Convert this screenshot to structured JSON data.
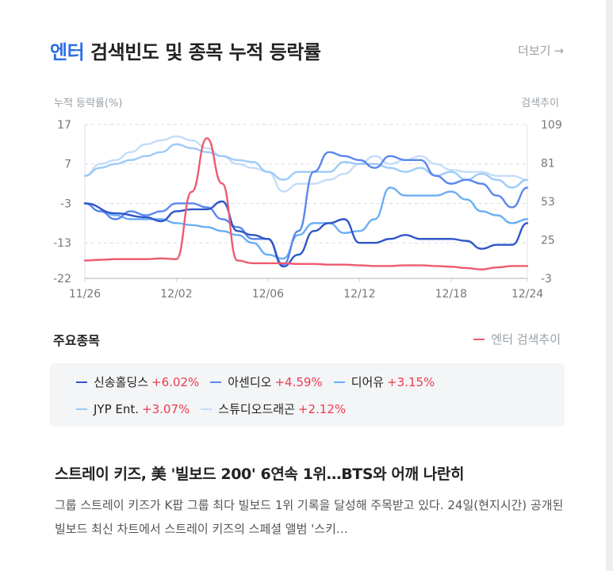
{
  "header": {
    "title_accent": "엔터",
    "title_rest": "검색빈도 및 종목 누적 등락률",
    "more_label": "더보기",
    "more_arrow": "→"
  },
  "chart_data": {
    "type": "line",
    "left_axis_label": "누적 등락률(%)",
    "right_axis_label": "검색추이",
    "y_left_ticks": [
      17,
      7,
      -3,
      -13,
      -22
    ],
    "y_left_range": [
      -22,
      17
    ],
    "y_right_ticks": [
      109,
      81,
      53,
      25,
      -3
    ],
    "y_right_range": [
      -3,
      109
    ],
    "x_ticks": [
      "11/26",
      "12/02",
      "12/06",
      "12/12",
      "12/18",
      "12/24"
    ],
    "x_range": [
      0,
      29
    ],
    "x_tick_positions": [
      0,
      6,
      12,
      18,
      24,
      29
    ],
    "grid": true,
    "series": [
      {
        "name": "신송홀딩스",
        "color": "#2f55c8",
        "axis": "left",
        "points": [
          [
            0,
            -3
          ],
          [
            2,
            -5.5
          ],
          [
            4,
            -6.5
          ],
          [
            5,
            -7.5
          ],
          [
            6,
            -5
          ],
          [
            7,
            -4.5
          ],
          [
            8,
            -4.5
          ],
          [
            9,
            -2.5
          ],
          [
            10,
            -10
          ],
          [
            11,
            -11
          ],
          [
            12,
            -12
          ],
          [
            13,
            -19
          ],
          [
            14,
            -16
          ],
          [
            15,
            -10
          ],
          [
            16,
            -8
          ],
          [
            17,
            -7
          ],
          [
            18,
            -13
          ],
          [
            19,
            -13
          ],
          [
            20,
            -12
          ],
          [
            21,
            -11
          ],
          [
            22,
            -12
          ],
          [
            23,
            -12
          ],
          [
            24,
            -12
          ],
          [
            25,
            -12.5
          ],
          [
            26,
            -14.5
          ],
          [
            27,
            -13.5
          ],
          [
            28,
            -13.5
          ],
          [
            29,
            -8
          ]
        ]
      },
      {
        "name": "아센디오",
        "color": "#5b86ee",
        "axis": "left",
        "points": [
          [
            0,
            -3
          ],
          [
            1,
            -5
          ],
          [
            2,
            -7
          ],
          [
            3,
            -5
          ],
          [
            4,
            -6
          ],
          [
            5,
            -5
          ],
          [
            6,
            -3
          ],
          [
            7,
            -3
          ],
          [
            8,
            -4
          ],
          [
            9,
            -7
          ],
          [
            10,
            -9
          ],
          [
            11,
            -12
          ],
          [
            12,
            -12
          ],
          [
            13,
            -18.5
          ],
          [
            14,
            -10
          ],
          [
            15,
            5
          ],
          [
            16,
            10
          ],
          [
            17,
            9
          ],
          [
            18,
            8
          ],
          [
            19,
            6
          ],
          [
            20,
            9
          ],
          [
            21,
            8
          ],
          [
            22,
            8
          ],
          [
            23,
            4
          ],
          [
            24,
            2
          ],
          [
            25,
            3
          ],
          [
            26,
            2
          ],
          [
            27,
            -1
          ],
          [
            28,
            -4
          ],
          [
            29,
            1
          ]
        ]
      },
      {
        "name": "디어유",
        "color": "#6aaef5",
        "axis": "left",
        "points": [
          [
            0,
            -3
          ],
          [
            1,
            -5
          ],
          [
            2,
            -6
          ],
          [
            3,
            -7
          ],
          [
            4,
            -7
          ],
          [
            5,
            -7
          ],
          [
            6,
            -8
          ],
          [
            7,
            -8.5
          ],
          [
            8,
            -9
          ],
          [
            9,
            -10
          ],
          [
            10,
            -11
          ],
          [
            11,
            -13
          ],
          [
            12,
            -16
          ],
          [
            13,
            -17
          ],
          [
            14,
            -11
          ],
          [
            15,
            -8
          ],
          [
            16,
            -8
          ],
          [
            17,
            -10.5
          ],
          [
            18,
            -10
          ],
          [
            19,
            -7
          ],
          [
            20,
            1
          ],
          [
            21,
            -1
          ],
          [
            22,
            -1
          ],
          [
            23,
            -1
          ],
          [
            24,
            0
          ],
          [
            25,
            -2
          ],
          [
            26,
            -5
          ],
          [
            27,
            -6
          ],
          [
            28,
            -8
          ],
          [
            29,
            -7
          ]
        ]
      },
      {
        "name": "JYP Ent.",
        "color": "#9ccaf7",
        "axis": "left",
        "points": [
          [
            0,
            4
          ],
          [
            1,
            6
          ],
          [
            2,
            7
          ],
          [
            3,
            8
          ],
          [
            4,
            9
          ],
          [
            5,
            10
          ],
          [
            6,
            12
          ],
          [
            7,
            11
          ],
          [
            8,
            10
          ],
          [
            9,
            9
          ],
          [
            10,
            8
          ],
          [
            11,
            7.5
          ],
          [
            12,
            5
          ],
          [
            13,
            3
          ],
          [
            14,
            5
          ],
          [
            15,
            5
          ],
          [
            16,
            5
          ],
          [
            17,
            7.5
          ],
          [
            18,
            7
          ],
          [
            19,
            7
          ],
          [
            20,
            6
          ],
          [
            21,
            5
          ],
          [
            22,
            6
          ],
          [
            23,
            4
          ],
          [
            24,
            5
          ],
          [
            25,
            3
          ],
          [
            26,
            4.5
          ],
          [
            27,
            3
          ],
          [
            28,
            1
          ],
          [
            29,
            3
          ]
        ]
      },
      {
        "name": "스튜디오드래곤",
        "color": "#c5dcf8",
        "axis": "left",
        "points": [
          [
            0,
            4
          ],
          [
            1,
            7
          ],
          [
            2,
            8
          ],
          [
            3,
            10
          ],
          [
            4,
            12
          ],
          [
            5,
            13
          ],
          [
            6,
            14
          ],
          [
            7,
            13
          ],
          [
            8,
            11
          ],
          [
            9,
            9
          ],
          [
            10,
            7
          ],
          [
            11,
            6
          ],
          [
            12,
            5
          ],
          [
            13,
            0
          ],
          [
            14,
            2
          ],
          [
            15,
            2
          ],
          [
            16,
            3
          ],
          [
            17,
            4.5
          ],
          [
            18,
            7
          ],
          [
            19,
            9
          ],
          [
            20,
            7
          ],
          [
            21,
            8
          ],
          [
            22,
            9
          ],
          [
            23,
            7
          ],
          [
            24,
            5.5
          ],
          [
            25,
            5
          ],
          [
            26,
            5
          ],
          [
            27,
            4
          ],
          [
            28,
            4
          ],
          [
            29,
            3
          ]
        ]
      },
      {
        "name": "엔터 검색추이",
        "color": "#ee5a6f",
        "axis": "right",
        "points": [
          [
            0,
            10
          ],
          [
            1,
            10.5
          ],
          [
            2,
            11
          ],
          [
            3,
            11
          ],
          [
            4,
            11
          ],
          [
            5,
            11.5
          ],
          [
            6,
            11
          ],
          [
            7,
            60
          ],
          [
            8,
            99
          ],
          [
            9,
            66
          ],
          [
            10,
            10
          ],
          [
            11,
            8
          ],
          [
            12,
            8
          ],
          [
            13,
            8
          ],
          [
            14,
            7.5
          ],
          [
            15,
            7.5
          ],
          [
            16,
            7
          ],
          [
            17,
            7
          ],
          [
            18,
            6.5
          ],
          [
            19,
            6
          ],
          [
            20,
            6
          ],
          [
            21,
            6.5
          ],
          [
            22,
            6.5
          ],
          [
            23,
            6
          ],
          [
            24,
            5.5
          ],
          [
            25,
            4.5
          ],
          [
            26,
            3.5
          ],
          [
            27,
            5
          ],
          [
            28,
            6
          ],
          [
            29,
            6
          ]
        ]
      }
    ]
  },
  "legend": {
    "section_label": "주요종목",
    "search_trend": "엔터 검색추이"
  },
  "stocks": [
    {
      "name": "신송홀딩스",
      "change": "+6.02%",
      "color": "#2f55c8"
    },
    {
      "name": "아센디오",
      "change": "+4.59%",
      "color": "#5b86ee"
    },
    {
      "name": "디어유",
      "change": "+3.15%",
      "color": "#6aaef5"
    },
    {
      "name": "JYP Ent.",
      "change": "+3.07%",
      "color": "#9ccaf7"
    },
    {
      "name": "스튜디오드래곤",
      "change": "+2.12%",
      "color": "#c5dcf8"
    }
  ],
  "news": {
    "title": "스트레이 키즈, 美 '빌보드 200' 6연속 1위…BTS와 어깨 나란히",
    "body": "그룹 스트레이 키즈가 K팝 그룹 최다 빌보드 1위 기록을 달성해 주목받고 있다. 24일(현지시간) 공개된 빌보드 최신 차트에서 스트레이 키즈의 스페셜 앨범 '스키…"
  }
}
